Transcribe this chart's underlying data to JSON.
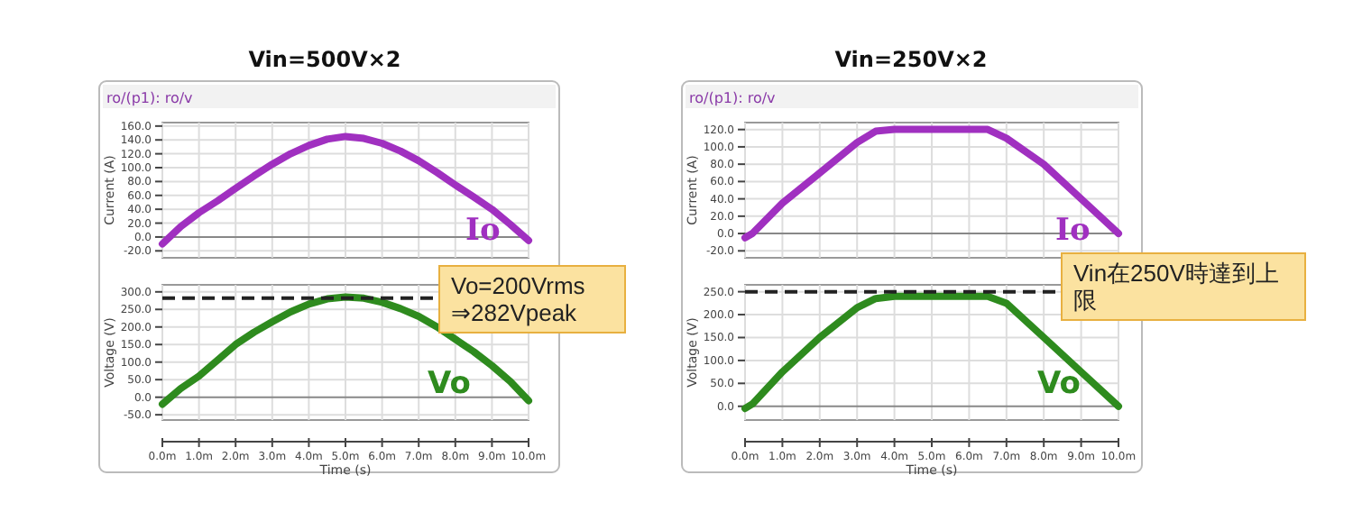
{
  "chart_data": [
    {
      "type": "line",
      "title": "Vin=500V×2",
      "subtitle": "ro/(p1): ro/v",
      "ylabel": "Current (A)",
      "grid": true,
      "tick_labels": "y",
      "xlim": [
        0,
        10
      ],
      "xticks": [
        0,
        1,
        2,
        3,
        4,
        5,
        6,
        7,
        8,
        9,
        10
      ],
      "ylim": [
        -30,
        165
      ],
      "yticks": [
        {
          "value": -20,
          "label": "-20.0"
        },
        {
          "value": 0,
          "label": "0.0"
        },
        {
          "value": 20,
          "label": "20.0"
        },
        {
          "value": 40,
          "label": "40.0"
        },
        {
          "value": 60,
          "label": "60.0"
        },
        {
          "value": 80,
          "label": "80.0"
        },
        {
          "value": 100,
          "label": "100.0"
        },
        {
          "value": 120,
          "label": "120.0"
        },
        {
          "value": 140,
          "label": "140.0"
        },
        {
          "value": 160,
          "label": "160.0"
        }
      ],
      "x": [
        0,
        0.5,
        1,
        1.5,
        2,
        2.5,
        3,
        3.5,
        4,
        4.5,
        5,
        5.5,
        6,
        6.5,
        7,
        7.5,
        8,
        8.5,
        9,
        9.5,
        10
      ],
      "series": [
        {
          "name": "Io",
          "color": "#a030c0",
          "values": [
            -10,
            15,
            35,
            52,
            70,
            88,
            105,
            120,
            132,
            141,
            145,
            142,
            135,
            124,
            110,
            93,
            75,
            58,
            40,
            18,
            -5
          ]
        }
      ]
    },
    {
      "type": "line",
      "xlabel": "Time (s)",
      "ylabel": "Voltage (V)",
      "grid": true,
      "xlim": [
        0,
        10
      ],
      "xticks": [
        {
          "value": 0,
          "label": "0.0m"
        },
        {
          "value": 1,
          "label": "1.0m"
        },
        {
          "value": 2,
          "label": "2.0m"
        },
        {
          "value": 3,
          "label": "3.0m"
        },
        {
          "value": 4,
          "label": "4.0m"
        },
        {
          "value": 5,
          "label": "5.0m"
        },
        {
          "value": 6,
          "label": "6.0m"
        },
        {
          "value": 7,
          "label": "7.0m"
        },
        {
          "value": 8,
          "label": "8.0m"
        },
        {
          "value": 9,
          "label": "9.0m"
        },
        {
          "value": 10,
          "label": "10.0m"
        }
      ],
      "ylim": [
        -65,
        320
      ],
      "yticks": [
        {
          "value": -50,
          "label": "-50.0"
        },
        {
          "value": 0,
          "label": "0.0"
        },
        {
          "value": 50,
          "label": "50.0"
        },
        {
          "value": 100,
          "label": "100.0"
        },
        {
          "value": 150,
          "label": "150.0"
        },
        {
          "value": 200,
          "label": "200.0"
        },
        {
          "value": 250,
          "label": "250.0"
        },
        {
          "value": 300,
          "label": "300.0"
        }
      ],
      "x": [
        0,
        0.5,
        1,
        1.5,
        2,
        2.5,
        3,
        3.5,
        4,
        4.5,
        5,
        5.5,
        6,
        6.5,
        7,
        7.5,
        8,
        8.5,
        9,
        9.5,
        10
      ],
      "series": [
        {
          "name": "Vo",
          "color": "#2e8b1e",
          "values": [
            -20,
            25,
            60,
            105,
            150,
            185,
            215,
            243,
            265,
            280,
            285,
            282,
            270,
            252,
            230,
            200,
            165,
            130,
            90,
            45,
            -10
          ]
        }
      ],
      "ref_lines": [
        {
          "axis": "y",
          "value": 282,
          "color": "#222222",
          "line_style": "dashed"
        }
      ],
      "annotations": [
        "Vo=200Vrms\n⇒282Vpeak"
      ]
    },
    {
      "type": "line",
      "title": "Vin=250V×2",
      "subtitle": "ro/(p1): ro/v",
      "ylabel": "Current (A)",
      "grid": true,
      "tick_labels": "y",
      "xlim": [
        0,
        10
      ],
      "xticks": [
        0,
        1,
        2,
        3,
        4,
        5,
        6,
        7,
        8,
        9,
        10
      ],
      "ylim": [
        -28,
        128
      ],
      "yticks": [
        {
          "value": -20,
          "label": "-20.0"
        },
        {
          "value": 0,
          "label": "0.0"
        },
        {
          "value": 20,
          "label": "20.0"
        },
        {
          "value": 40,
          "label": "40.0"
        },
        {
          "value": 60,
          "label": "60.0"
        },
        {
          "value": 80,
          "label": "80.0"
        },
        {
          "value": 100,
          "label": "100.0"
        },
        {
          "value": 120,
          "label": "120.0"
        }
      ],
      "x": [
        0,
        0.2,
        1,
        2,
        3,
        3.5,
        4,
        5,
        6,
        6.5,
        7,
        8,
        9,
        10
      ],
      "series": [
        {
          "name": "Io",
          "color": "#a030c0",
          "values": [
            -5,
            0,
            35,
            70,
            105,
            118,
            120,
            120,
            120,
            120,
            110,
            80,
            40,
            0
          ]
        }
      ]
    },
    {
      "type": "line",
      "xlabel": "Time (s)",
      "ylabel": "Voltage (V)",
      "grid": true,
      "xlim": [
        0,
        10
      ],
      "xticks": [
        {
          "value": 0,
          "label": "0.0m"
        },
        {
          "value": 1,
          "label": "1.0m"
        },
        {
          "value": 2,
          "label": "2.0m"
        },
        {
          "value": 3,
          "label": "3.0m"
        },
        {
          "value": 4,
          "label": "4.0m"
        },
        {
          "value": 5,
          "label": "5.0m"
        },
        {
          "value": 6,
          "label": "6.0m"
        },
        {
          "value": 7,
          "label": "7.0m"
        },
        {
          "value": 8,
          "label": "8.0m"
        },
        {
          "value": 9,
          "label": "9.0m"
        },
        {
          "value": 10,
          "label": "10.0m"
        }
      ],
      "ylim": [
        -30,
        265
      ],
      "yticks": [
        {
          "value": 0,
          "label": "0.0"
        },
        {
          "value": 50,
          "label": "50.0"
        },
        {
          "value": 100,
          "label": "100.0"
        },
        {
          "value": 150,
          "label": "150.0"
        },
        {
          "value": 200,
          "label": "200.0"
        },
        {
          "value": 250,
          "label": "250.0"
        }
      ],
      "x": [
        0,
        0.2,
        1,
        2,
        3,
        3.5,
        4,
        5,
        6,
        6.5,
        7,
        8,
        9,
        10
      ],
      "series": [
        {
          "name": "Vo",
          "color": "#2e8b1e",
          "values": [
            -5,
            5,
            75,
            150,
            215,
            235,
            240,
            240,
            240,
            240,
            225,
            150,
            75,
            0
          ]
        }
      ],
      "ref_lines": [
        {
          "axis": "y",
          "value": 250,
          "color": "#222222",
          "line_style": "dashed"
        }
      ],
      "annotations": [
        "Vin在250V時達到上限"
      ]
    }
  ]
}
